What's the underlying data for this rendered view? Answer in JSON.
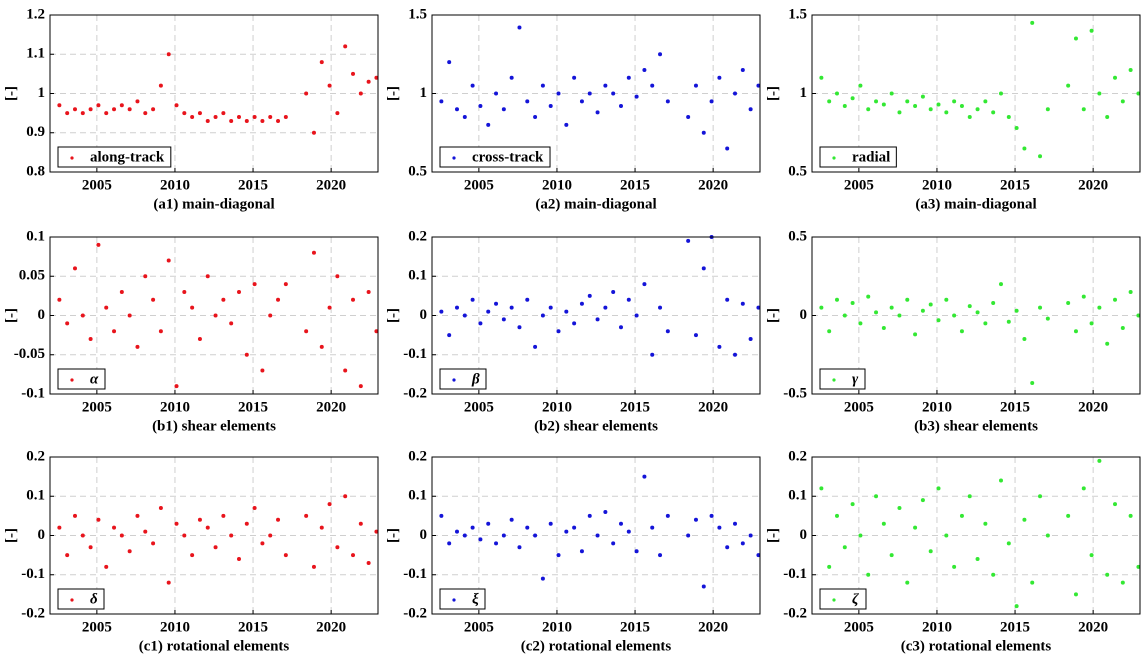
{
  "chart_data": [
    {
      "type": "scatter",
      "title": "(a1) main-diagonal",
      "ylabel": "[-]",
      "xlim": [
        2002,
        2023
      ],
      "xticks": [
        2005,
        2010,
        2015,
        2020
      ],
      "ylim": [
        0.8,
        1.2
      ],
      "yticks": [
        0.8,
        0.9,
        1,
        1.1,
        1.2
      ],
      "grid": true,
      "legend": "lower left",
      "x": [
        2002.6,
        2003.1,
        2003.6,
        2004.1,
        2004.6,
        2005.1,
        2005.6,
        2006.1,
        2006.6,
        2007.1,
        2007.6,
        2008.1,
        2008.6,
        2009.1,
        2009.6,
        2010.1,
        2010.6,
        2011.1,
        2011.6,
        2012.1,
        2012.6,
        2013.1,
        2013.6,
        2014.1,
        2014.6,
        2015.1,
        2015.6,
        2016.1,
        2016.6,
        2017.1,
        2018.4,
        2018.9,
        2019.4,
        2019.9,
        2020.4,
        2020.9,
        2021.4,
        2021.9,
        2022.4,
        2022.9
      ],
      "series": [
        {
          "name": "along-track",
          "color": "#e8141c",
          "values": [
            0.97,
            0.95,
            0.96,
            0.95,
            0.96,
            0.97,
            0.95,
            0.96,
            0.97,
            0.96,
            0.98,
            0.95,
            0.96,
            1.02,
            1.1,
            0.97,
            0.95,
            0.94,
            0.95,
            0.93,
            0.94,
            0.95,
            0.93,
            0.94,
            0.93,
            0.94,
            0.93,
            0.94,
            0.93,
            0.94,
            1.0,
            0.9,
            1.08,
            1.02,
            0.95,
            1.12,
            1.05,
            1.0,
            1.03,
            1.04
          ]
        }
      ]
    },
    {
      "type": "scatter",
      "title": "(a2) main-diagonal",
      "ylabel": "[-]",
      "xlim": [
        2002,
        2023
      ],
      "xticks": [
        2005,
        2010,
        2015,
        2020
      ],
      "ylim": [
        0.5,
        1.5
      ],
      "yticks": [
        0.5,
        1,
        1.5
      ],
      "grid": true,
      "legend": "lower left",
      "x": [
        2002.6,
        2003.1,
        2003.6,
        2004.1,
        2004.6,
        2005.1,
        2005.6,
        2006.1,
        2006.6,
        2007.1,
        2007.6,
        2008.1,
        2008.6,
        2009.1,
        2009.6,
        2010.1,
        2010.6,
        2011.1,
        2011.6,
        2012.1,
        2012.6,
        2013.1,
        2013.6,
        2014.1,
        2014.6,
        2015.1,
        2015.6,
        2016.1,
        2016.6,
        2017.1,
        2018.4,
        2018.9,
        2019.4,
        2019.9,
        2020.4,
        2020.9,
        2021.4,
        2021.9,
        2022.4,
        2022.9
      ],
      "series": [
        {
          "name": "cross-track",
          "color": "#1414d8",
          "values": [
            0.95,
            1.2,
            0.9,
            0.85,
            1.05,
            0.92,
            0.8,
            1.0,
            0.9,
            1.1,
            1.42,
            0.95,
            0.85,
            1.05,
            0.92,
            1.0,
            0.8,
            1.1,
            0.95,
            1.0,
            0.88,
            1.05,
            1.0,
            0.92,
            1.1,
            0.98,
            1.15,
            1.05,
            1.25,
            0.95,
            0.85,
            1.05,
            0.75,
            0.95,
            1.1,
            0.65,
            1.0,
            1.15,
            0.9,
            1.05
          ]
        }
      ]
    },
    {
      "type": "scatter",
      "title": "(a3) main-diagonal",
      "ylabel": "[-]",
      "xlim": [
        2002,
        2023
      ],
      "xticks": [
        2005,
        2010,
        2015,
        2020
      ],
      "ylim": [
        0.5,
        1.5
      ],
      "yticks": [
        0.5,
        1,
        1.5
      ],
      "grid": true,
      "legend": "lower left",
      "x": [
        2002.6,
        2003.1,
        2003.6,
        2004.1,
        2004.6,
        2005.1,
        2005.6,
        2006.1,
        2006.6,
        2007.1,
        2007.6,
        2008.1,
        2008.6,
        2009.1,
        2009.6,
        2010.1,
        2010.6,
        2011.1,
        2011.6,
        2012.1,
        2012.6,
        2013.1,
        2013.6,
        2014.1,
        2014.6,
        2015.1,
        2015.6,
        2016.1,
        2016.6,
        2017.1,
        2018.4,
        2018.9,
        2019.4,
        2019.9,
        2020.4,
        2020.9,
        2021.4,
        2021.9,
        2022.4,
        2022.9
      ],
      "series": [
        {
          "name": "radial",
          "color": "#33e833",
          "values": [
            1.1,
            0.95,
            1.0,
            0.92,
            0.97,
            1.05,
            0.9,
            0.95,
            0.93,
            1.0,
            0.88,
            0.95,
            0.92,
            0.98,
            0.9,
            0.93,
            0.88,
            0.95,
            0.92,
            0.85,
            0.9,
            0.95,
            0.88,
            1.0,
            0.85,
            0.78,
            0.65,
            1.45,
            0.6,
            0.9,
            1.05,
            1.35,
            0.9,
            1.4,
            1.0,
            0.85,
            1.1,
            0.95,
            1.15,
            1.0
          ]
        }
      ]
    },
    {
      "type": "scatter",
      "title": "(b1) shear elements",
      "ylabel": "[-]",
      "xlim": [
        2002,
        2023
      ],
      "xticks": [
        2005,
        2010,
        2015,
        2020
      ],
      "ylim": [
        -0.1,
        0.1
      ],
      "yticks": [
        -0.1,
        -0.05,
        0,
        0.05,
        0.1
      ],
      "grid": true,
      "legend": "lower left",
      "x": [
        2002.6,
        2003.1,
        2003.6,
        2004.1,
        2004.6,
        2005.1,
        2005.6,
        2006.1,
        2006.6,
        2007.1,
        2007.6,
        2008.1,
        2008.6,
        2009.1,
        2009.6,
        2010.1,
        2010.6,
        2011.1,
        2011.6,
        2012.1,
        2012.6,
        2013.1,
        2013.6,
        2014.1,
        2014.6,
        2015.1,
        2015.6,
        2016.1,
        2016.6,
        2017.1,
        2018.4,
        2018.9,
        2019.4,
        2019.9,
        2020.4,
        2020.9,
        2021.4,
        2021.9,
        2022.4,
        2022.9
      ],
      "series": [
        {
          "name": "α",
          "color": "#e8141c",
          "values": [
            0.02,
            -0.01,
            0.06,
            0.0,
            -0.03,
            0.09,
            0.01,
            -0.02,
            0.03,
            0.0,
            -0.04,
            0.05,
            0.02,
            -0.02,
            0.07,
            -0.09,
            0.03,
            0.01,
            -0.03,
            0.05,
            0.0,
            0.02,
            -0.01,
            0.03,
            -0.05,
            0.04,
            -0.07,
            0.0,
            0.02,
            0.04,
            -0.02,
            0.08,
            -0.04,
            0.01,
            0.05,
            -0.07,
            0.02,
            -0.09,
            0.03,
            -0.02
          ]
        }
      ]
    },
    {
      "type": "scatter",
      "title": "(b2) shear elements",
      "ylabel": "[-]",
      "xlim": [
        2002,
        2023
      ],
      "xticks": [
        2005,
        2010,
        2015,
        2020
      ],
      "ylim": [
        -0.2,
        0.2
      ],
      "yticks": [
        -0.2,
        -0.1,
        0,
        0.1,
        0.2
      ],
      "grid": true,
      "legend": "lower left",
      "x": [
        2002.6,
        2003.1,
        2003.6,
        2004.1,
        2004.6,
        2005.1,
        2005.6,
        2006.1,
        2006.6,
        2007.1,
        2007.6,
        2008.1,
        2008.6,
        2009.1,
        2009.6,
        2010.1,
        2010.6,
        2011.1,
        2011.6,
        2012.1,
        2012.6,
        2013.1,
        2013.6,
        2014.1,
        2014.6,
        2015.1,
        2015.6,
        2016.1,
        2016.6,
        2017.1,
        2018.4,
        2018.9,
        2019.4,
        2019.9,
        2020.4,
        2020.9,
        2021.4,
        2021.9,
        2022.4,
        2022.9
      ],
      "series": [
        {
          "name": "β",
          "color": "#1414d8",
          "values": [
            0.01,
            -0.05,
            0.02,
            0.0,
            0.04,
            -0.02,
            0.01,
            0.03,
            -0.01,
            0.02,
            -0.03,
            0.04,
            -0.08,
            0.0,
            0.02,
            -0.04,
            0.01,
            -0.02,
            0.03,
            0.05,
            -0.01,
            0.02,
            0.06,
            -0.03,
            0.04,
            0.0,
            0.08,
            -0.1,
            0.02,
            -0.04,
            0.19,
            -0.05,
            0.12,
            0.2,
            -0.08,
            0.04,
            -0.1,
            0.03,
            -0.06,
            0.02
          ]
        }
      ]
    },
    {
      "type": "scatter",
      "title": "(b3) shear elements",
      "ylabel": "[-]",
      "xlim": [
        2002,
        2023
      ],
      "xticks": [
        2005,
        2010,
        2015,
        2020
      ],
      "ylim": [
        -0.5,
        0.5
      ],
      "yticks": [
        -0.5,
        0,
        0.5
      ],
      "grid": true,
      "legend": "lower left",
      "x": [
        2002.6,
        2003.1,
        2003.6,
        2004.1,
        2004.6,
        2005.1,
        2005.6,
        2006.1,
        2006.6,
        2007.1,
        2007.6,
        2008.1,
        2008.6,
        2009.1,
        2009.6,
        2010.1,
        2010.6,
        2011.1,
        2011.6,
        2012.1,
        2012.6,
        2013.1,
        2013.6,
        2014.1,
        2014.6,
        2015.1,
        2015.6,
        2016.1,
        2016.6,
        2017.1,
        2018.4,
        2018.9,
        2019.4,
        2019.9,
        2020.4,
        2020.9,
        2021.4,
        2021.9,
        2022.4,
        2022.9
      ],
      "series": [
        {
          "name": "γ",
          "color": "#33e833",
          "values": [
            0.05,
            -0.1,
            0.1,
            0.0,
            0.08,
            -0.05,
            0.12,
            0.02,
            -0.08,
            0.05,
            0.0,
            0.1,
            -0.12,
            0.03,
            0.07,
            -0.03,
            0.1,
            0.0,
            -0.1,
            0.06,
            0.02,
            -0.05,
            0.08,
            0.2,
            -0.04,
            0.03,
            -0.15,
            -0.43,
            0.05,
            -0.02,
            0.08,
            -0.1,
            0.12,
            -0.05,
            0.05,
            -0.18,
            0.1,
            -0.08,
            0.15,
            0.0
          ]
        }
      ]
    },
    {
      "type": "scatter",
      "title": "(c1) rotational elements",
      "ylabel": "[-]",
      "xlim": [
        2002,
        2023
      ],
      "xticks": [
        2005,
        2010,
        2015,
        2020
      ],
      "ylim": [
        -0.2,
        0.2
      ],
      "yticks": [
        -0.2,
        -0.1,
        0,
        0.1,
        0.2
      ],
      "grid": true,
      "legend": "lower left",
      "x": [
        2002.6,
        2003.1,
        2003.6,
        2004.1,
        2004.6,
        2005.1,
        2005.6,
        2006.1,
        2006.6,
        2007.1,
        2007.6,
        2008.1,
        2008.6,
        2009.1,
        2009.6,
        2010.1,
        2010.6,
        2011.1,
        2011.6,
        2012.1,
        2012.6,
        2013.1,
        2013.6,
        2014.1,
        2014.6,
        2015.1,
        2015.6,
        2016.1,
        2016.6,
        2017.1,
        2018.4,
        2018.9,
        2019.4,
        2019.9,
        2020.4,
        2020.9,
        2021.4,
        2021.9,
        2022.4,
        2022.9
      ],
      "series": [
        {
          "name": "δ",
          "color": "#e8141c",
          "values": [
            0.02,
            -0.05,
            0.05,
            0.0,
            -0.03,
            0.04,
            -0.08,
            0.02,
            0.0,
            -0.04,
            0.05,
            0.01,
            -0.02,
            0.07,
            -0.12,
            0.03,
            0.0,
            -0.05,
            0.04,
            0.02,
            -0.03,
            0.05,
            0.0,
            -0.06,
            0.03,
            0.07,
            -0.02,
            0.0,
            0.04,
            -0.05,
            0.05,
            -0.08,
            0.02,
            0.08,
            -0.03,
            0.1,
            -0.05,
            0.03,
            -0.07,
            0.01
          ]
        }
      ]
    },
    {
      "type": "scatter",
      "title": "(c2) rotational elements",
      "ylabel": "[-]",
      "xlim": [
        2002,
        2023
      ],
      "xticks": [
        2005,
        2010,
        2015,
        2020
      ],
      "ylim": [
        -0.2,
        0.2
      ],
      "yticks": [
        -0.2,
        -0.1,
        0,
        0.1,
        0.2
      ],
      "grid": true,
      "legend": "lower left",
      "x": [
        2002.6,
        2003.1,
        2003.6,
        2004.1,
        2004.6,
        2005.1,
        2005.6,
        2006.1,
        2006.6,
        2007.1,
        2007.6,
        2008.1,
        2008.6,
        2009.1,
        2009.6,
        2010.1,
        2010.6,
        2011.1,
        2011.6,
        2012.1,
        2012.6,
        2013.1,
        2013.6,
        2014.1,
        2014.6,
        2015.1,
        2015.6,
        2016.1,
        2016.6,
        2017.1,
        2018.4,
        2018.9,
        2019.4,
        2019.9,
        2020.4,
        2020.9,
        2021.4,
        2021.9,
        2022.4,
        2022.9
      ],
      "series": [
        {
          "name": "ξ",
          "color": "#1414d8",
          "values": [
            0.05,
            -0.02,
            0.01,
            0.0,
            0.02,
            -0.01,
            0.03,
            -0.02,
            0.0,
            0.04,
            -0.03,
            0.02,
            0.0,
            -0.11,
            0.03,
            -0.05,
            0.01,
            0.02,
            -0.04,
            0.05,
            0.0,
            0.06,
            -0.02,
            0.03,
            0.01,
            -0.04,
            0.15,
            0.02,
            -0.05,
            0.05,
            0.0,
            0.04,
            -0.13,
            0.05,
            0.02,
            -0.03,
            0.03,
            -0.02,
            0.0,
            -0.05
          ]
        }
      ]
    },
    {
      "type": "scatter",
      "title": "(c3) rotational elements",
      "ylabel": "[-]",
      "xlim": [
        2002,
        2023
      ],
      "xticks": [
        2005,
        2010,
        2015,
        2020
      ],
      "ylim": [
        -0.2,
        0.2
      ],
      "yticks": [
        -0.2,
        -0.1,
        0,
        0.1,
        0.2
      ],
      "grid": true,
      "legend": "lower left",
      "x": [
        2002.6,
        2003.1,
        2003.6,
        2004.1,
        2004.6,
        2005.1,
        2005.6,
        2006.1,
        2006.6,
        2007.1,
        2007.6,
        2008.1,
        2008.6,
        2009.1,
        2009.6,
        2010.1,
        2010.6,
        2011.1,
        2011.6,
        2012.1,
        2012.6,
        2013.1,
        2013.6,
        2014.1,
        2014.6,
        2015.1,
        2015.6,
        2016.1,
        2016.6,
        2017.1,
        2018.4,
        2018.9,
        2019.4,
        2019.9,
        2020.4,
        2020.9,
        2021.4,
        2021.9,
        2022.4,
        2022.9
      ],
      "series": [
        {
          "name": "ζ",
          "color": "#33e833",
          "values": [
            0.12,
            -0.08,
            0.05,
            -0.03,
            0.08,
            0.0,
            -0.1,
            0.1,
            0.03,
            -0.05,
            0.07,
            -0.12,
            0.02,
            0.09,
            -0.04,
            0.12,
            0.0,
            -0.08,
            0.05,
            0.1,
            -0.06,
            0.03,
            -0.1,
            0.14,
            -0.02,
            -0.18,
            0.04,
            -0.12,
            0.1,
            0.0,
            0.05,
            -0.15,
            0.12,
            -0.05,
            0.19,
            -0.1,
            0.08,
            -0.12,
            0.05,
            -0.08
          ]
        }
      ]
    }
  ]
}
